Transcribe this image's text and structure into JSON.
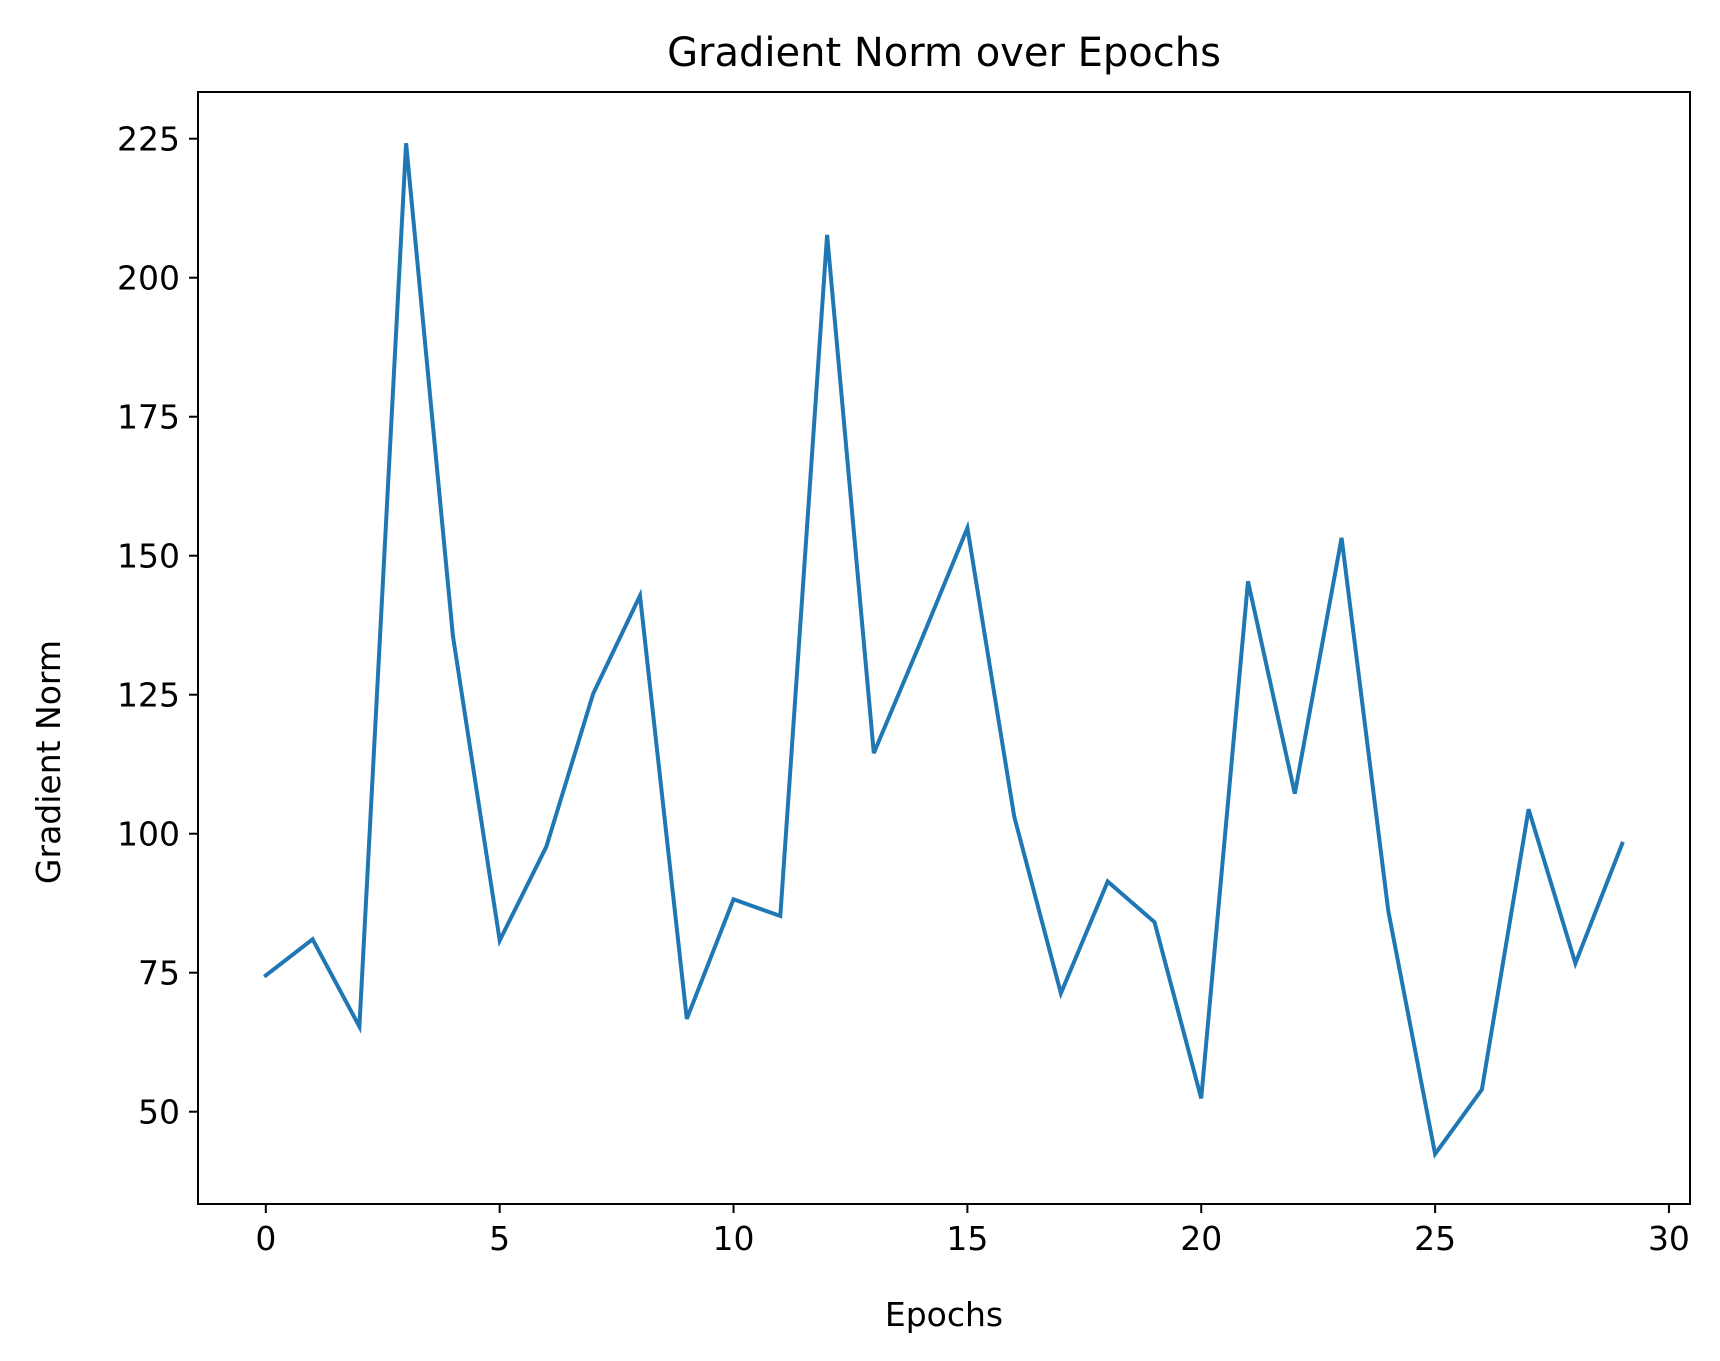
{
  "chart_data": {
    "type": "line",
    "title": "Gradient Norm over Epochs",
    "xlabel": "Epochs",
    "ylabel": "Gradient Norm",
    "xlim": [
      -1.45,
      30.45
    ],
    "ylim": [
      33.4,
      233.4
    ],
    "xticks": [
      0,
      5,
      10,
      15,
      20,
      25,
      30
    ],
    "yticks": [
      50,
      75,
      100,
      125,
      150,
      175,
      200,
      225
    ],
    "grid": false,
    "series": [
      {
        "color": "#1f77b4",
        "x": [
          0,
          1,
          2,
          3,
          4,
          5,
          6,
          7,
          8,
          9,
          10,
          11,
          12,
          13,
          14,
          15,
          16,
          17,
          18,
          19,
          20,
          21,
          22,
          23,
          24,
          25,
          26,
          27,
          28,
          29
        ],
        "values": [
          74.5,
          81.0,
          65.3,
          224.2,
          135.6,
          80.8,
          97.7,
          125.2,
          142.8,
          66.7,
          88.2,
          85.2,
          207.7,
          114.5,
          134.5,
          155.0,
          103.1,
          71.3,
          91.4,
          84.1,
          52.4,
          145.4,
          107.2,
          153.2,
          86.1,
          42.4,
          54.0,
          104.4,
          76.7,
          98.2
        ]
      }
    ]
  }
}
